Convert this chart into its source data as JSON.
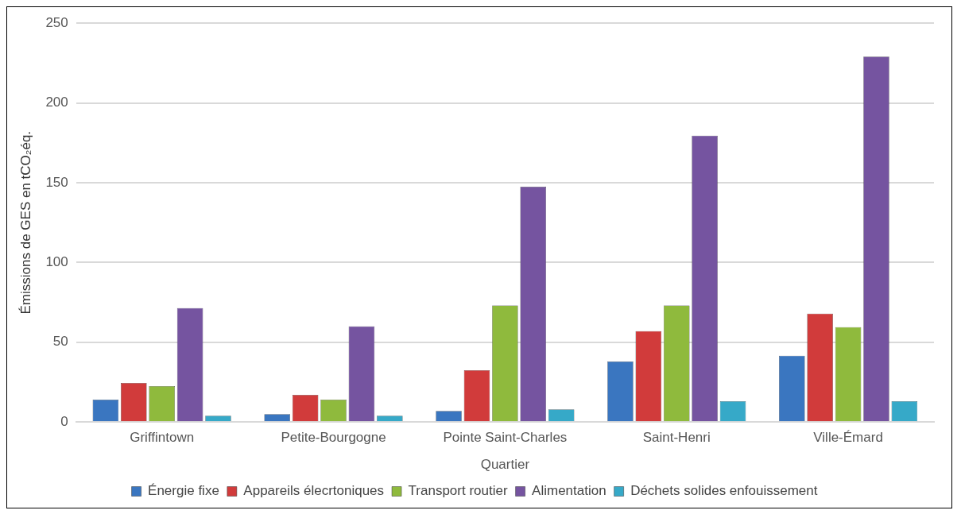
{
  "chart_data": {
    "type": "bar",
    "xlabel": "Quartier",
    "ylabel": "Émissions de GES en tCO₂éq.",
    "categories": [
      "Griffintown",
      "Petite-Bourgogne",
      "Pointe Saint-Charles",
      "Saint-Henri",
      "Ville-Émard"
    ],
    "series": [
      {
        "name": "Énergie fixe",
        "color": "#3a76c0",
        "values": [
          14,
          5,
          7,
          38,
          41.5
        ]
      },
      {
        "name": "Appareils élecrtoniques",
        "color": "#d13b3b",
        "values": [
          24.5,
          17,
          32.5,
          57,
          68
        ]
      },
      {
        "name": "Transport routier",
        "color": "#8fba3d",
        "values": [
          22.5,
          14,
          73,
          73,
          59.5
        ]
      },
      {
        "name": "Alimentation",
        "color": "#7554a0",
        "values": [
          71.5,
          60,
          147.5,
          179.5,
          229
        ]
      },
      {
        "name": "Déchets solides enfouissement",
        "color": "#36a9c8",
        "values": [
          4,
          4,
          8,
          13,
          13
        ]
      }
    ],
    "ylim": [
      0,
      250
    ],
    "yticks": [
      0,
      50,
      100,
      150,
      200,
      250
    ],
    "grid": "y",
    "legend": "bottom"
  }
}
